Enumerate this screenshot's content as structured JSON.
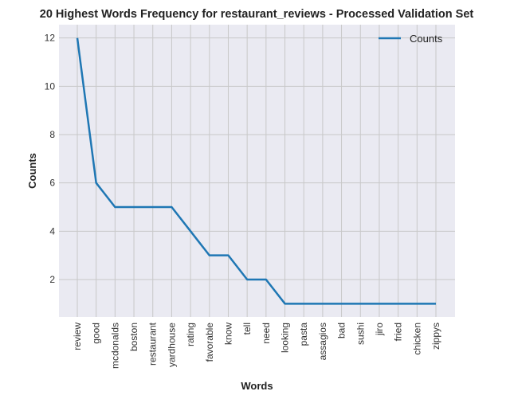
{
  "chart_data": {
    "type": "line",
    "title": "20 Highest Words Frequency for restaurant_reviews - Processed Validation Set",
    "xlabel": "Words",
    "ylabel": "Counts",
    "categories": [
      "review",
      "good",
      "mcdonalds",
      "boston",
      "restaurant",
      "yardhouse",
      "rating",
      "favorable",
      "know",
      "tell",
      "need",
      "looking",
      "pasta",
      "assagios",
      "bad",
      "sushi",
      "jiro",
      "fried",
      "chicken",
      "zippys"
    ],
    "series": [
      {
        "name": "Counts",
        "values": [
          12,
          6,
          5,
          5,
          5,
          5,
          4,
          3,
          3,
          2,
          2,
          1,
          1,
          1,
          1,
          1,
          1,
          1,
          1,
          1
        ]
      }
    ],
    "ylim": [
      0.45,
      12.55
    ],
    "yticks": [
      2,
      4,
      6,
      8,
      10,
      12
    ],
    "grid": true,
    "legend": "top-right",
    "colors": {
      "line": "#1f77b4",
      "plot_bg": "#eaeaf2",
      "grid": "#c8c8c8"
    }
  }
}
